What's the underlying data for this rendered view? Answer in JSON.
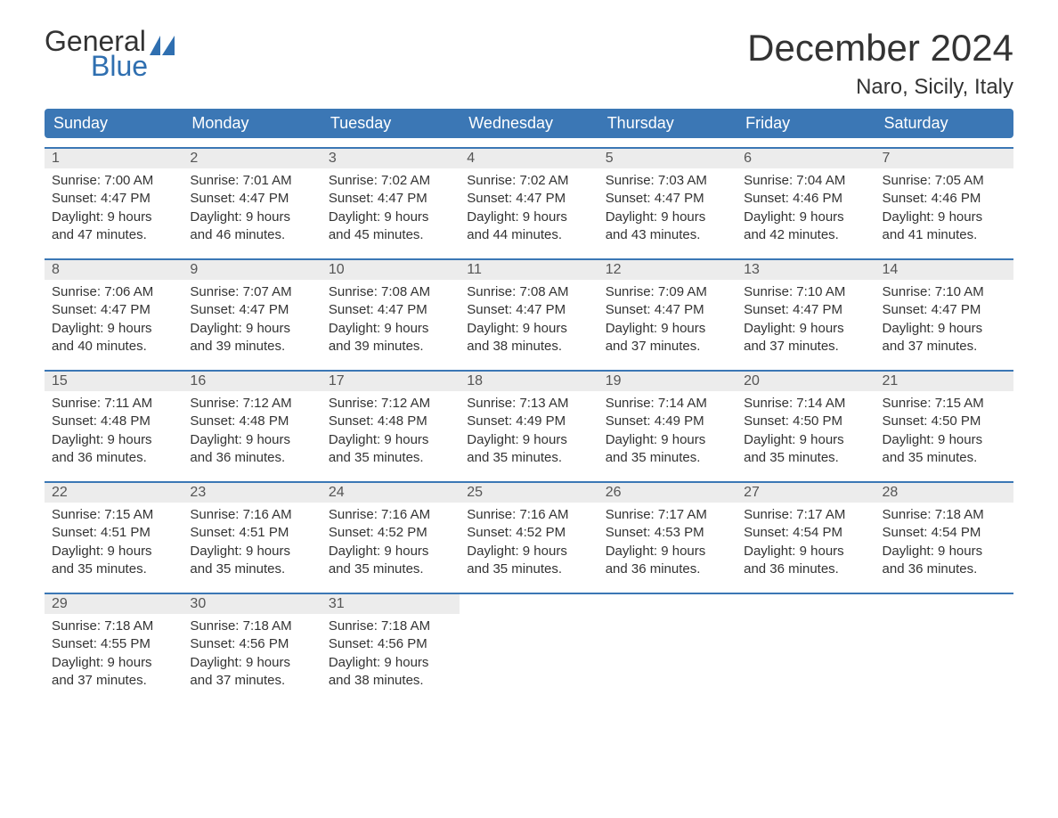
{
  "branding": {
    "logo_word1": "General",
    "logo_word2": "Blue",
    "logo_sail_color": "#2f6fb0",
    "logo_text_color": "#333333"
  },
  "title": "December 2024",
  "location": "Naro, Sicily, Italy",
  "colors": {
    "header_bg": "#3b77b5",
    "header_text": "#ffffff",
    "daynum_bg": "#ececec",
    "body_text": "#333333",
    "week_border": "#3b77b5",
    "page_bg": "#ffffff"
  },
  "typography": {
    "title_fontsize": 42,
    "location_fontsize": 24,
    "dayhead_fontsize": 18,
    "daynum_fontsize": 16,
    "body_fontsize": 15
  },
  "day_headers": [
    "Sunday",
    "Monday",
    "Tuesday",
    "Wednesday",
    "Thursday",
    "Friday",
    "Saturday"
  ],
  "weeks": [
    [
      {
        "n": "1",
        "sunrise": "Sunrise: 7:00 AM",
        "sunset": "Sunset: 4:47 PM",
        "d1": "Daylight: 9 hours",
        "d2": "and 47 minutes."
      },
      {
        "n": "2",
        "sunrise": "Sunrise: 7:01 AM",
        "sunset": "Sunset: 4:47 PM",
        "d1": "Daylight: 9 hours",
        "d2": "and 46 minutes."
      },
      {
        "n": "3",
        "sunrise": "Sunrise: 7:02 AM",
        "sunset": "Sunset: 4:47 PM",
        "d1": "Daylight: 9 hours",
        "d2": "and 45 minutes."
      },
      {
        "n": "4",
        "sunrise": "Sunrise: 7:02 AM",
        "sunset": "Sunset: 4:47 PM",
        "d1": "Daylight: 9 hours",
        "d2": "and 44 minutes."
      },
      {
        "n": "5",
        "sunrise": "Sunrise: 7:03 AM",
        "sunset": "Sunset: 4:47 PM",
        "d1": "Daylight: 9 hours",
        "d2": "and 43 minutes."
      },
      {
        "n": "6",
        "sunrise": "Sunrise: 7:04 AM",
        "sunset": "Sunset: 4:46 PM",
        "d1": "Daylight: 9 hours",
        "d2": "and 42 minutes."
      },
      {
        "n": "7",
        "sunrise": "Sunrise: 7:05 AM",
        "sunset": "Sunset: 4:46 PM",
        "d1": "Daylight: 9 hours",
        "d2": "and 41 minutes."
      }
    ],
    [
      {
        "n": "8",
        "sunrise": "Sunrise: 7:06 AM",
        "sunset": "Sunset: 4:47 PM",
        "d1": "Daylight: 9 hours",
        "d2": "and 40 minutes."
      },
      {
        "n": "9",
        "sunrise": "Sunrise: 7:07 AM",
        "sunset": "Sunset: 4:47 PM",
        "d1": "Daylight: 9 hours",
        "d2": "and 39 minutes."
      },
      {
        "n": "10",
        "sunrise": "Sunrise: 7:08 AM",
        "sunset": "Sunset: 4:47 PM",
        "d1": "Daylight: 9 hours",
        "d2": "and 39 minutes."
      },
      {
        "n": "11",
        "sunrise": "Sunrise: 7:08 AM",
        "sunset": "Sunset: 4:47 PM",
        "d1": "Daylight: 9 hours",
        "d2": "and 38 minutes."
      },
      {
        "n": "12",
        "sunrise": "Sunrise: 7:09 AM",
        "sunset": "Sunset: 4:47 PM",
        "d1": "Daylight: 9 hours",
        "d2": "and 37 minutes."
      },
      {
        "n": "13",
        "sunrise": "Sunrise: 7:10 AM",
        "sunset": "Sunset: 4:47 PM",
        "d1": "Daylight: 9 hours",
        "d2": "and 37 minutes."
      },
      {
        "n": "14",
        "sunrise": "Sunrise: 7:10 AM",
        "sunset": "Sunset: 4:47 PM",
        "d1": "Daylight: 9 hours",
        "d2": "and 37 minutes."
      }
    ],
    [
      {
        "n": "15",
        "sunrise": "Sunrise: 7:11 AM",
        "sunset": "Sunset: 4:48 PM",
        "d1": "Daylight: 9 hours",
        "d2": "and 36 minutes."
      },
      {
        "n": "16",
        "sunrise": "Sunrise: 7:12 AM",
        "sunset": "Sunset: 4:48 PM",
        "d1": "Daylight: 9 hours",
        "d2": "and 36 minutes."
      },
      {
        "n": "17",
        "sunrise": "Sunrise: 7:12 AM",
        "sunset": "Sunset: 4:48 PM",
        "d1": "Daylight: 9 hours",
        "d2": "and 35 minutes."
      },
      {
        "n": "18",
        "sunrise": "Sunrise: 7:13 AM",
        "sunset": "Sunset: 4:49 PM",
        "d1": "Daylight: 9 hours",
        "d2": "and 35 minutes."
      },
      {
        "n": "19",
        "sunrise": "Sunrise: 7:14 AM",
        "sunset": "Sunset: 4:49 PM",
        "d1": "Daylight: 9 hours",
        "d2": "and 35 minutes."
      },
      {
        "n": "20",
        "sunrise": "Sunrise: 7:14 AM",
        "sunset": "Sunset: 4:50 PM",
        "d1": "Daylight: 9 hours",
        "d2": "and 35 minutes."
      },
      {
        "n": "21",
        "sunrise": "Sunrise: 7:15 AM",
        "sunset": "Sunset: 4:50 PM",
        "d1": "Daylight: 9 hours",
        "d2": "and 35 minutes."
      }
    ],
    [
      {
        "n": "22",
        "sunrise": "Sunrise: 7:15 AM",
        "sunset": "Sunset: 4:51 PM",
        "d1": "Daylight: 9 hours",
        "d2": "and 35 minutes."
      },
      {
        "n": "23",
        "sunrise": "Sunrise: 7:16 AM",
        "sunset": "Sunset: 4:51 PM",
        "d1": "Daylight: 9 hours",
        "d2": "and 35 minutes."
      },
      {
        "n": "24",
        "sunrise": "Sunrise: 7:16 AM",
        "sunset": "Sunset: 4:52 PM",
        "d1": "Daylight: 9 hours",
        "d2": "and 35 minutes."
      },
      {
        "n": "25",
        "sunrise": "Sunrise: 7:16 AM",
        "sunset": "Sunset: 4:52 PM",
        "d1": "Daylight: 9 hours",
        "d2": "and 35 minutes."
      },
      {
        "n": "26",
        "sunrise": "Sunrise: 7:17 AM",
        "sunset": "Sunset: 4:53 PM",
        "d1": "Daylight: 9 hours",
        "d2": "and 36 minutes."
      },
      {
        "n": "27",
        "sunrise": "Sunrise: 7:17 AM",
        "sunset": "Sunset: 4:54 PM",
        "d1": "Daylight: 9 hours",
        "d2": "and 36 minutes."
      },
      {
        "n": "28",
        "sunrise": "Sunrise: 7:18 AM",
        "sunset": "Sunset: 4:54 PM",
        "d1": "Daylight: 9 hours",
        "d2": "and 36 minutes."
      }
    ],
    [
      {
        "n": "29",
        "sunrise": "Sunrise: 7:18 AM",
        "sunset": "Sunset: 4:55 PM",
        "d1": "Daylight: 9 hours",
        "d2": "and 37 minutes."
      },
      {
        "n": "30",
        "sunrise": "Sunrise: 7:18 AM",
        "sunset": "Sunset: 4:56 PM",
        "d1": "Daylight: 9 hours",
        "d2": "and 37 minutes."
      },
      {
        "n": "31",
        "sunrise": "Sunrise: 7:18 AM",
        "sunset": "Sunset: 4:56 PM",
        "d1": "Daylight: 9 hours",
        "d2": "and 38 minutes."
      },
      null,
      null,
      null,
      null
    ]
  ]
}
